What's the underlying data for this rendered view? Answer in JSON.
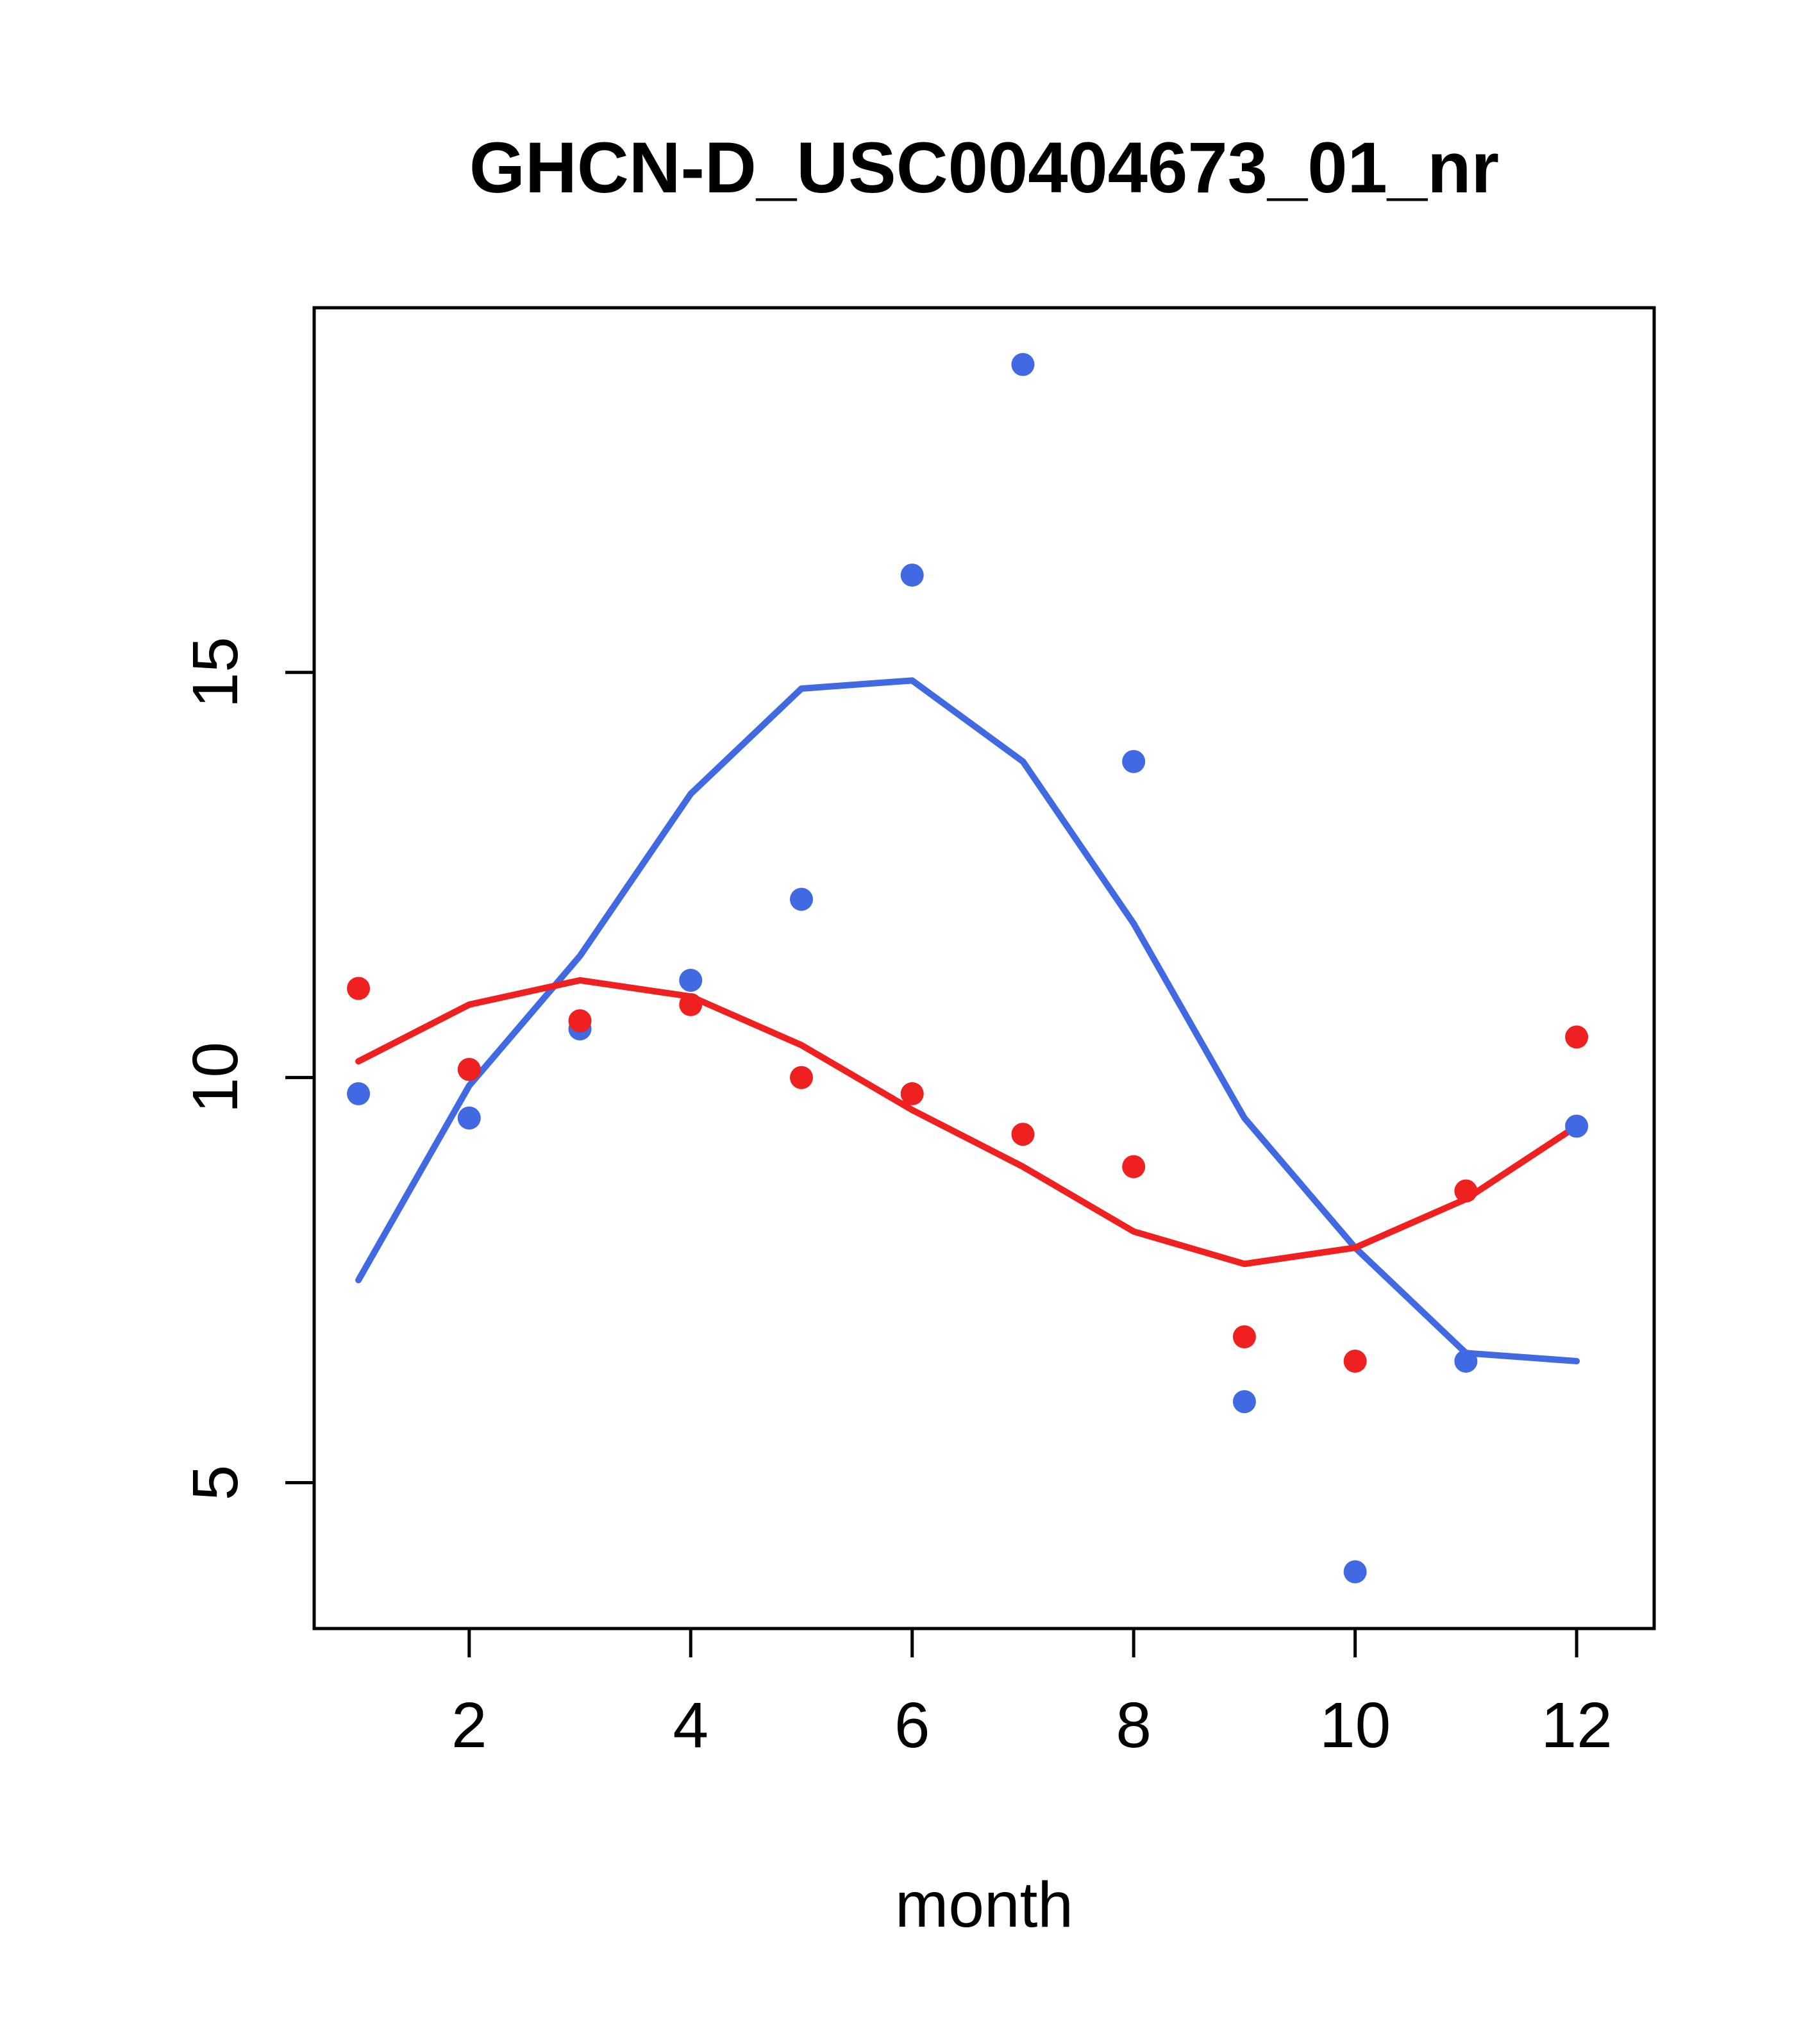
{
  "chart_data": {
    "type": "scatter",
    "title": "GHCN-D_USC00404673_01_nr",
    "xlabel": "month",
    "ylabel": "",
    "x": [
      1,
      2,
      3,
      4,
      5,
      6,
      7,
      8,
      9,
      10,
      11,
      12
    ],
    "xlim": [
      0.6,
      12.7
    ],
    "ylim": [
      3.2,
      19.5
    ],
    "x_ticks": [
      2,
      4,
      6,
      8,
      10,
      12
    ],
    "y_ticks": [
      5,
      10,
      15
    ],
    "grid": false,
    "legend": "none",
    "colors": {
      "blue": "#4169E1",
      "red": "#EE2020",
      "axis": "#000000",
      "background": "#FFFFFF"
    },
    "series": [
      {
        "name": "blue-smooth",
        "type": "line",
        "color": "#4169E1",
        "values": [
          7.5,
          9.9,
          11.5,
          13.5,
          14.8,
          14.9,
          13.9,
          11.9,
          9.5,
          7.9,
          6.6,
          6.5
        ]
      },
      {
        "name": "red-smooth",
        "type": "line",
        "color": "#EE2020",
        "values": [
          10.2,
          10.9,
          11.2,
          11.0,
          10.4,
          9.6,
          8.9,
          8.1,
          7.7,
          7.9,
          8.5,
          9.4
        ]
      },
      {
        "name": "blue-points",
        "type": "points",
        "color": "#4169E1",
        "values": [
          9.8,
          9.5,
          10.6,
          11.2,
          12.2,
          16.2,
          18.8,
          13.9,
          6.0,
          3.9,
          6.5,
          9.4
        ]
      },
      {
        "name": "red-points",
        "type": "points",
        "color": "#EE2020",
        "values": [
          11.1,
          10.1,
          10.7,
          10.9,
          10.0,
          9.8,
          9.3,
          8.9,
          6.8,
          6.5,
          8.6,
          10.5
        ]
      }
    ]
  }
}
